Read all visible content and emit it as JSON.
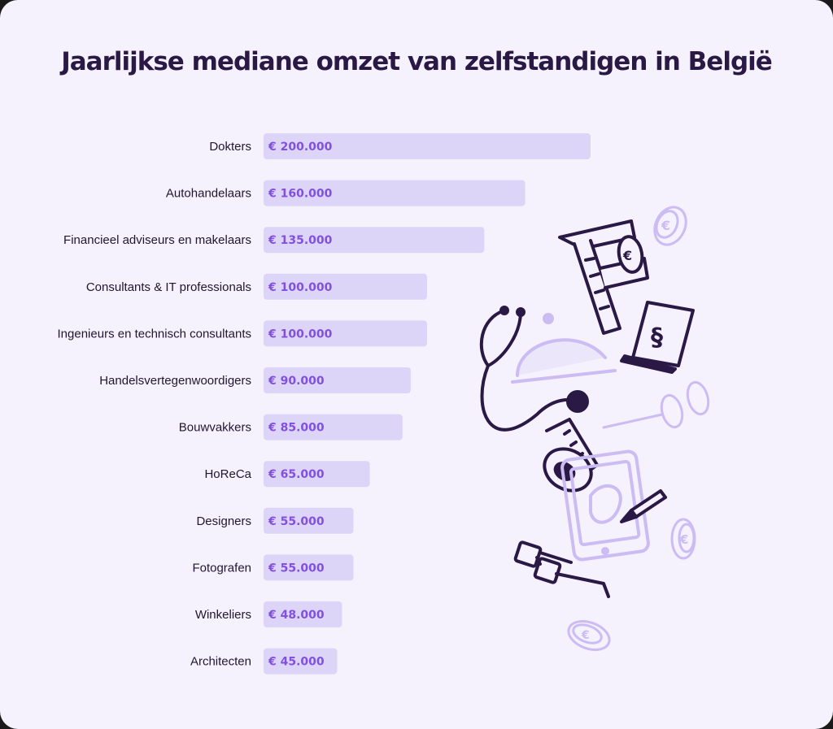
{
  "title": "Jaarlijkse mediane omzet van zelfstandigen in België",
  "colors": {
    "background": "#f5f2fd",
    "bar": "#ddd5f7",
    "value_text": "#8150e0",
    "title_text": "#2a1845",
    "illustration_dark": "#2a1845",
    "illustration_light": "#cbbcf3"
  },
  "illustration_icons": [
    "caliper-icon",
    "euro-coin-icon",
    "document-paragraph-icon",
    "stethoscope-icon",
    "cloche-icon",
    "dumbbell-icon",
    "measuring-tape-icon",
    "tablet-icon",
    "pencil-icon",
    "glasses-icon"
  ],
  "chart_data": {
    "type": "bar",
    "orientation": "horizontal",
    "title": "Jaarlijkse mediane omzet van zelfstandigen in België",
    "xlabel": "",
    "ylabel": "",
    "grid": false,
    "xlim": [
      0,
      200000
    ],
    "categories": [
      "Dokters",
      "Autohandelaars",
      "Financieel adviseurs en makelaars",
      "Consultants & IT professionals",
      "Ingenieurs en technisch consultants",
      "Handelsvertegenwoordigers",
      "Bouwvakkers",
      "HoReCa",
      "Designers",
      "Fotografen",
      "Winkeliers",
      "Architecten"
    ],
    "values": [
      200000,
      160000,
      135000,
      100000,
      100000,
      90000,
      85000,
      65000,
      55000,
      55000,
      48000,
      45000
    ],
    "value_labels": [
      "€ 200.000",
      "€ 160.000",
      "€ 135.000",
      "€ 100.000",
      "€ 100.000",
      "€ 90.000",
      "€ 85.000",
      "€ 65.000",
      "€ 55.000",
      "€ 55.000",
      "€ 48.000",
      "€ 45.000"
    ]
  }
}
